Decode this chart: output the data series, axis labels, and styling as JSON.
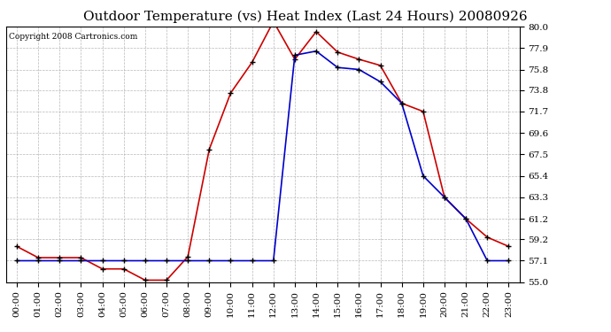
{
  "title": "Outdoor Temperature (vs) Heat Index (Last 24 Hours) 20080926",
  "copyright": "Copyright 2008 Cartronics.com",
  "hours": [
    "00:00",
    "01:00",
    "02:00",
    "03:00",
    "04:00",
    "05:00",
    "06:00",
    "07:00",
    "08:00",
    "09:00",
    "10:00",
    "11:00",
    "12:00",
    "13:00",
    "14:00",
    "15:00",
    "16:00",
    "17:00",
    "18:00",
    "19:00",
    "20:00",
    "21:00",
    "22:00",
    "23:00"
  ],
  "temp": [
    58.5,
    57.4,
    57.4,
    57.4,
    56.3,
    56.3,
    55.2,
    55.2,
    57.5,
    68.0,
    73.5,
    76.5,
    80.5,
    76.8,
    79.5,
    77.5,
    76.8,
    76.2,
    72.5,
    71.7,
    63.3,
    61.2,
    59.4,
    58.5
  ],
  "heat_index": [
    57.1,
    57.1,
    57.1,
    57.1,
    57.1,
    57.1,
    57.1,
    57.1,
    57.1,
    57.1,
    57.1,
    57.1,
    57.1,
    77.2,
    77.6,
    76.0,
    75.8,
    74.6,
    72.5,
    65.4,
    63.3,
    61.2,
    57.1,
    57.1
  ],
  "ylim": [
    55.0,
    80.0
  ],
  "yticks": [
    55.0,
    57.1,
    59.2,
    61.2,
    63.3,
    65.4,
    67.5,
    69.6,
    71.7,
    73.8,
    75.8,
    77.9,
    80.0
  ],
  "temp_color": "#cc0000",
  "heat_color": "#0000cc",
  "grid_color": "#b0b0b0",
  "bg_color": "#ffffff",
  "plot_bg": "#ffffff",
  "title_fontsize": 11,
  "figwidth": 6.9,
  "figheight": 3.75,
  "dpi": 100
}
